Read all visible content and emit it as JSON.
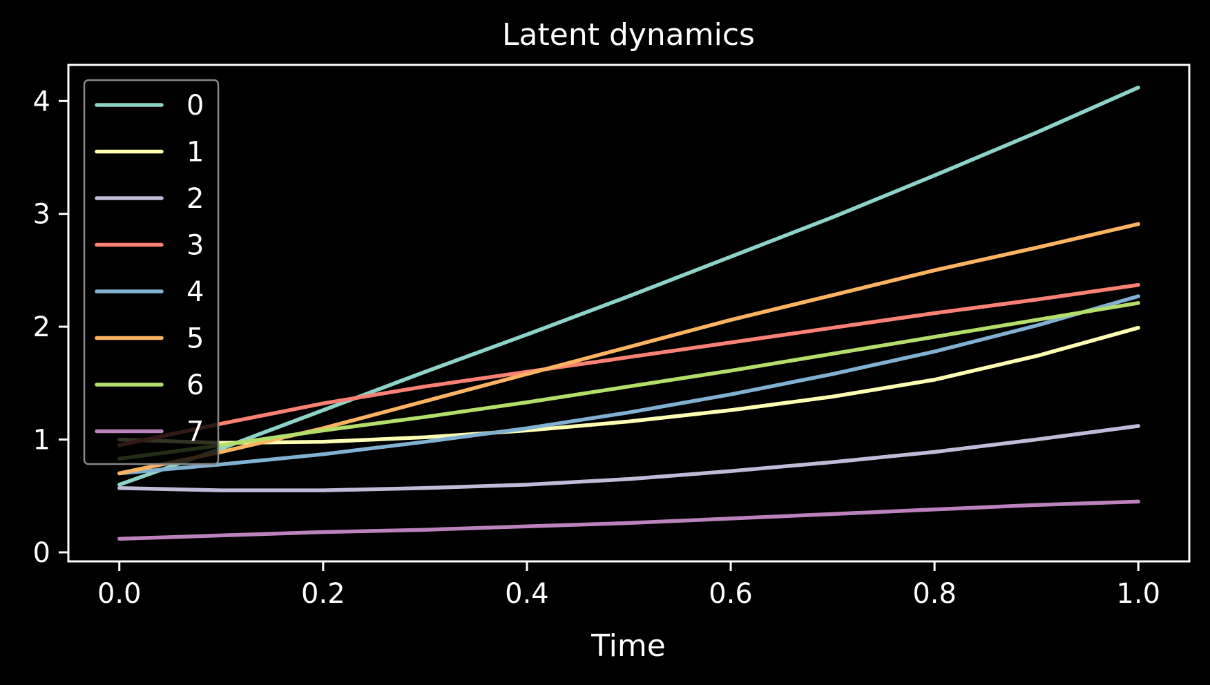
{
  "chart_data": {
    "type": "line",
    "title": "Latent dynamics",
    "xlabel": "Time",
    "ylabel": "",
    "xlim": [
      -0.05,
      1.05
    ],
    "ylim": [
      -0.08,
      4.32
    ],
    "xticks": [
      0.0,
      0.2,
      0.4,
      0.6,
      0.8,
      1.0
    ],
    "xtick_labels": [
      "0.0",
      "0.2",
      "0.4",
      "0.6",
      "0.8",
      "1.0"
    ],
    "yticks": [
      0,
      1,
      2,
      3,
      4
    ],
    "ytick_labels": [
      "0",
      "1",
      "2",
      "3",
      "4"
    ],
    "grid": false,
    "legend_position": "upper-left",
    "x": [
      0.0,
      0.1,
      0.2,
      0.3,
      0.4,
      0.5,
      0.6,
      0.7,
      0.8,
      0.9,
      1.0
    ],
    "series": [
      {
        "name": "0",
        "color": "#8dd3c7",
        "values": [
          0.6,
          0.92,
          1.26,
          1.6,
          1.93,
          2.27,
          2.62,
          2.97,
          3.34,
          3.72,
          4.12
        ]
      },
      {
        "name": "1",
        "color": "#feffb3",
        "values": [
          1.0,
          0.97,
          0.98,
          1.02,
          1.08,
          1.16,
          1.26,
          1.38,
          1.53,
          1.74,
          1.99
        ]
      },
      {
        "name": "2",
        "color": "#bfbbd9",
        "values": [
          0.57,
          0.55,
          0.55,
          0.57,
          0.6,
          0.65,
          0.72,
          0.8,
          0.89,
          1.0,
          1.12
        ]
      },
      {
        "name": "3",
        "color": "#fa8174",
        "values": [
          0.95,
          1.14,
          1.32,
          1.47,
          1.6,
          1.73,
          1.86,
          1.99,
          2.12,
          2.24,
          2.37
        ]
      },
      {
        "name": "4",
        "color": "#81b1d2",
        "values": [
          0.7,
          0.78,
          0.87,
          0.98,
          1.1,
          1.24,
          1.4,
          1.58,
          1.78,
          2.01,
          2.27
        ]
      },
      {
        "name": "5",
        "color": "#fdb462",
        "values": [
          0.7,
          0.89,
          1.1,
          1.34,
          1.58,
          1.82,
          2.06,
          2.28,
          2.5,
          2.7,
          2.91
        ]
      },
      {
        "name": "6",
        "color": "#b3de69",
        "values": [
          0.83,
          0.95,
          1.08,
          1.2,
          1.33,
          1.47,
          1.61,
          1.76,
          1.91,
          2.06,
          2.21
        ]
      },
      {
        "name": "7",
        "color": "#bc82bd",
        "values": [
          0.12,
          0.15,
          0.18,
          0.2,
          0.23,
          0.26,
          0.3,
          0.34,
          0.38,
          0.42,
          0.45
        ]
      }
    ]
  }
}
